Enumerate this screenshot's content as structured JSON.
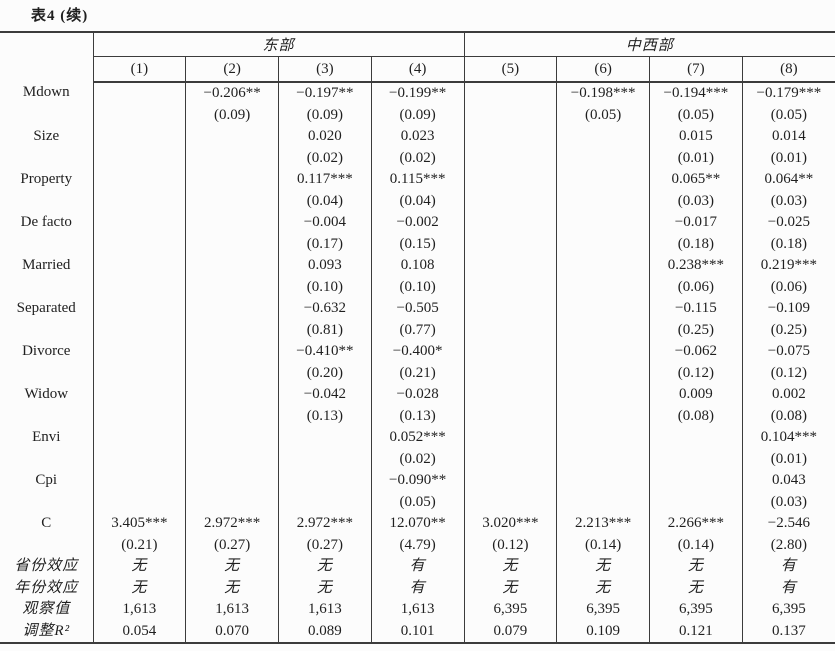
{
  "page": {
    "table_title": "表4 (续)"
  },
  "table": {
    "group_headers": [
      {
        "label": "东部",
        "span": 4
      },
      {
        "label": "中西部",
        "span": 4
      }
    ],
    "col_headers": [
      "(1)",
      "(2)",
      "(3)",
      "(4)",
      "(5)",
      "(6)",
      "(7)",
      "(8)"
    ],
    "coef_rows": [
      {
        "label": "Mdown",
        "coef": [
          "",
          "−0.206**",
          "−0.197**",
          "−0.199**",
          "",
          "−0.198***",
          "−0.194***",
          "−0.179***"
        ],
        "se": [
          "",
          "(0.09)",
          "(0.09)",
          "(0.09)",
          "",
          "(0.05)",
          "(0.05)",
          "(0.05)"
        ]
      },
      {
        "label": "Size",
        "coef": [
          "",
          "",
          "0.020",
          "0.023",
          "",
          "",
          "0.015",
          "0.014"
        ],
        "se": [
          "",
          "",
          "(0.02)",
          "(0.02)",
          "",
          "",
          "(0.01)",
          "(0.01)"
        ]
      },
      {
        "label": "Property",
        "coef": [
          "",
          "",
          "0.117***",
          "0.115***",
          "",
          "",
          "0.065**",
          "0.064**"
        ],
        "se": [
          "",
          "",
          "(0.04)",
          "(0.04)",
          "",
          "",
          "(0.03)",
          "(0.03)"
        ]
      },
      {
        "label": "De facto",
        "coef": [
          "",
          "",
          "−0.004",
          "−0.002",
          "",
          "",
          "−0.017",
          "−0.025"
        ],
        "se": [
          "",
          "",
          "(0.17)",
          "(0.15)",
          "",
          "",
          "(0.18)",
          "(0.18)"
        ]
      },
      {
        "label": "Married",
        "coef": [
          "",
          "",
          "0.093",
          "0.108",
          "",
          "",
          "0.238***",
          "0.219***"
        ],
        "se": [
          "",
          "",
          "(0.10)",
          "(0.10)",
          "",
          "",
          "(0.06)",
          "(0.06)"
        ]
      },
      {
        "label": "Separated",
        "coef": [
          "",
          "",
          "−0.632",
          "−0.505",
          "",
          "",
          "−0.115",
          "−0.109"
        ],
        "se": [
          "",
          "",
          "(0.81)",
          "(0.77)",
          "",
          "",
          "(0.25)",
          "(0.25)"
        ]
      },
      {
        "label": "Divorce",
        "coef": [
          "",
          "",
          "−0.410**",
          "−0.400*",
          "",
          "",
          "−0.062",
          "−0.075"
        ],
        "se": [
          "",
          "",
          "(0.20)",
          "(0.21)",
          "",
          "",
          "(0.12)",
          "(0.12)"
        ]
      },
      {
        "label": "Widow",
        "coef": [
          "",
          "",
          "−0.042",
          "−0.028",
          "",
          "",
          "0.009",
          "0.002"
        ],
        "se": [
          "",
          "",
          "(0.13)",
          "(0.13)",
          "",
          "",
          "(0.08)",
          "(0.08)"
        ]
      },
      {
        "label": "Envi",
        "coef": [
          "",
          "",
          "",
          "0.052***",
          "",
          "",
          "",
          "0.104***"
        ],
        "se": [
          "",
          "",
          "",
          "(0.02)",
          "",
          "",
          "",
          "(0.01)"
        ]
      },
      {
        "label": "Cpi",
        "coef": [
          "",
          "",
          "",
          "−0.090**",
          "",
          "",
          "",
          "0.043"
        ],
        "se": [
          "",
          "",
          "",
          "(0.05)",
          "",
          "",
          "",
          "(0.03)"
        ]
      },
      {
        "label": "C",
        "coef": [
          "3.405***",
          "2.972***",
          "2.972***",
          "12.070**",
          "3.020***",
          "2.213***",
          "2.266***",
          "−2.546"
        ],
        "se": [
          "(0.21)",
          "(0.27)",
          "(0.27)",
          "(4.79)",
          "(0.12)",
          "(0.14)",
          "(0.14)",
          "(2.80)"
        ]
      }
    ],
    "info_rows": [
      {
        "label": "省份效应",
        "values": [
          "无",
          "无",
          "无",
          "有",
          "无",
          "无",
          "无",
          "有"
        ]
      },
      {
        "label": "年份效应",
        "values": [
          "无",
          "无",
          "无",
          "有",
          "无",
          "无",
          "无",
          "有"
        ]
      },
      {
        "label": "观察值",
        "values": [
          "1,613",
          "1,613",
          "1,613",
          "1,613",
          "6,395",
          "6,395",
          "6,395",
          "6,395"
        ]
      },
      {
        "label": "调整R²",
        "values": [
          "0.054",
          "0.070",
          "0.089",
          "0.101",
          "0.079",
          "0.109",
          "0.121",
          "0.137"
        ]
      }
    ]
  }
}
